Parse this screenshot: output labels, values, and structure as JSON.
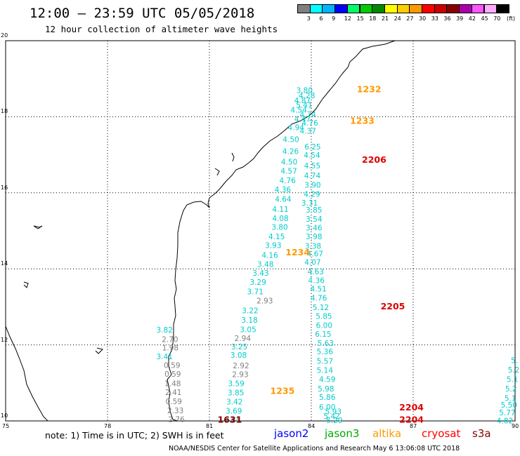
{
  "header": {
    "title": "12:00 – 23:59 UTC 05/05/2018",
    "subtitle": "12 hour collection of altimeter wave heights"
  },
  "legend": {
    "unit": "(ft)",
    "bins": [
      {
        "label": "3",
        "color": "#7f7f7f"
      },
      {
        "label": "6",
        "color": "#00ffff"
      },
      {
        "label": "9",
        "color": "#00b4ff"
      },
      {
        "label": "12",
        "color": "#0000ff"
      },
      {
        "label": "15",
        "color": "#00ff66"
      },
      {
        "label": "18",
        "color": "#00cc00"
      },
      {
        "label": "21",
        "color": "#008800"
      },
      {
        "label": "24",
        "color": "#ffff00"
      },
      {
        "label": "27",
        "color": "#ffcc00"
      },
      {
        "label": "30",
        "color": "#ff9900"
      },
      {
        "label": "33",
        "color": "#ff0000"
      },
      {
        "label": "36",
        "color": "#cc0000"
      },
      {
        "label": "39",
        "color": "#880000"
      },
      {
        "label": "42",
        "color": "#aa00aa"
      },
      {
        "label": "45",
        "color": "#ff55ff"
      },
      {
        "label": "70",
        "color": "#ffaaff"
      },
      {
        "label": "",
        "color": "#000000"
      }
    ]
  },
  "axes": {
    "lon_ticks": [
      "75",
      "78",
      "81",
      "84",
      "87",
      "90"
    ],
    "lat_ticks": [
      "20",
      "18",
      "16",
      "14",
      "12",
      "10"
    ]
  },
  "tracks": [
    {
      "color": "#00cccc",
      "points": [
        {
          "lon": 83.8,
          "lat": 18.7,
          "v": "3.80"
        },
        {
          "lon": 83.87,
          "lat": 18.56,
          "v": "4.28"
        },
        {
          "lon": 83.74,
          "lat": 18.43,
          "v": "4.87"
        },
        {
          "lon": 83.79,
          "lat": 18.31,
          "v": "5.41"
        },
        {
          "lon": 83.63,
          "lat": 18.18,
          "v": "4.54"
        },
        {
          "lon": 83.9,
          "lat": 18.06,
          "v": "4.74"
        },
        {
          "lon": 83.74,
          "lat": 17.94,
          "v": "4.47"
        },
        {
          "lon": 83.96,
          "lat": 17.84,
          "v": "4.76"
        },
        {
          "lon": 83.55,
          "lat": 17.72,
          "v": "4.94"
        },
        {
          "lon": 83.9,
          "lat": 17.63,
          "v": "4.37"
        },
        {
          "lon": 83.4,
          "lat": 17.41,
          "v": "4.50"
        },
        {
          "lon": 84.04,
          "lat": 17.21,
          "v": "6.25"
        },
        {
          "lon": 83.39,
          "lat": 17.09,
          "v": "4.26"
        },
        {
          "lon": 84.02,
          "lat": 16.99,
          "v": "4.54"
        },
        {
          "lon": 83.35,
          "lat": 16.82,
          "v": "4.50"
        },
        {
          "lon": 84.03,
          "lat": 16.72,
          "v": "4.55"
        },
        {
          "lon": 83.34,
          "lat": 16.58,
          "v": "4.57"
        },
        {
          "lon": 84.03,
          "lat": 16.46,
          "v": "4.74"
        },
        {
          "lon": 83.3,
          "lat": 16.33,
          "v": "4.76"
        },
        {
          "lon": 84.04,
          "lat": 16.21,
          "v": "3.90"
        },
        {
          "lon": 83.16,
          "lat": 16.09,
          "v": "4.36"
        },
        {
          "lon": 84.02,
          "lat": 15.97,
          "v": "4.29"
        },
        {
          "lon": 83.17,
          "lat": 15.84,
          "v": "4.64"
        },
        {
          "lon": 83.95,
          "lat": 15.74,
          "v": "3.31"
        },
        {
          "lon": 83.09,
          "lat": 15.57,
          "v": "4.11"
        },
        {
          "lon": 84.08,
          "lat": 15.55,
          "v": "3.85"
        },
        {
          "lon": 83.09,
          "lat": 15.33,
          "v": "4.08"
        },
        {
          "lon": 84.08,
          "lat": 15.31,
          "v": "3.54"
        },
        {
          "lon": 83.07,
          "lat": 15.1,
          "v": "3.80"
        },
        {
          "lon": 84.08,
          "lat": 15.08,
          "v": "3.46"
        },
        {
          "lon": 82.98,
          "lat": 14.85,
          "v": "4.15"
        },
        {
          "lon": 84.08,
          "lat": 14.85,
          "v": "3.98"
        },
        {
          "lon": 82.88,
          "lat": 14.62,
          "v": "3.93"
        },
        {
          "lon": 84.05,
          "lat": 14.6,
          "v": "3.38"
        },
        {
          "lon": 84.11,
          "lat": 14.4,
          "v": "4.67"
        },
        {
          "lon": 82.78,
          "lat": 14.36,
          "v": "4.16"
        },
        {
          "lon": 84.04,
          "lat": 14.18,
          "v": "4.07"
        },
        {
          "lon": 82.65,
          "lat": 14.12,
          "v": "3.48"
        },
        {
          "lon": 84.13,
          "lat": 13.93,
          "v": "4.63"
        },
        {
          "lon": 82.51,
          "lat": 13.89,
          "v": "3.43"
        },
        {
          "lon": 84.15,
          "lat": 13.7,
          "v": "4.36"
        },
        {
          "lon": 82.43,
          "lat": 13.65,
          "v": "3.29"
        },
        {
          "lon": 84.21,
          "lat": 13.48,
          "v": "4.51"
        },
        {
          "lon": 82.35,
          "lat": 13.4,
          "v": "3.71"
        },
        {
          "lon": 84.22,
          "lat": 13.24,
          "v": "4.76"
        },
        {
          "lon": 84.28,
          "lat": 12.99,
          "v": "5.12"
        },
        {
          "lon": 82.2,
          "lat": 12.91,
          "v": "3.22"
        },
        {
          "lon": 84.37,
          "lat": 12.76,
          "v": "5.85"
        },
        {
          "lon": 82.18,
          "lat": 12.66,
          "v": "3.18"
        },
        {
          "lon": 84.38,
          "lat": 12.52,
          "v": "6.00"
        },
        {
          "lon": 82.14,
          "lat": 12.41,
          "v": "3.05"
        },
        {
          "lon": 84.35,
          "lat": 12.29,
          "v": "6.15"
        },
        {
          "lon": 84.42,
          "lat": 12.05,
          "v": "5.63"
        },
        {
          "lon": 81.88,
          "lat": 11.96,
          "v": "3.25"
        },
        {
          "lon": 84.4,
          "lat": 11.83,
          "v": "5.36"
        },
        {
          "lon": 81.86,
          "lat": 11.73,
          "v": "3.08"
        },
        {
          "lon": 84.4,
          "lat": 11.58,
          "v": "5.57"
        },
        {
          "lon": 84.4,
          "lat": 11.34,
          "v": "5.14"
        },
        {
          "lon": 84.47,
          "lat": 11.1,
          "v": "4.59"
        },
        {
          "lon": 81.79,
          "lat": 10.99,
          "v": "3.59"
        },
        {
          "lon": 84.43,
          "lat": 10.85,
          "v": "5.98"
        },
        {
          "lon": 81.78,
          "lat": 10.75,
          "v": "3.85"
        },
        {
          "lon": 84.47,
          "lat": 10.63,
          "v": "5.86"
        },
        {
          "lon": 81.74,
          "lat": 10.51,
          "v": "3.42"
        },
        {
          "lon": 84.47,
          "lat": 10.37,
          "v": "6.00"
        },
        {
          "lon": 81.72,
          "lat": 10.27,
          "v": "3.69"
        },
        {
          "lon": 84.6,
          "lat": 10.13,
          "v": "5.42"
        },
        {
          "lon": 81.68,
          "lat": 10.03,
          "v": "3.55"
        },
        {
          "lon": 84.65,
          "lat": 10.25,
          "v": "5.93"
        },
        {
          "lon": 84.68,
          "lat": 10.02,
          "v": "5.29"
        }
      ]
    },
    {
      "color": "#7f7f7f",
      "points": [
        {
          "lon": 82.63,
          "lat": 13.16,
          "v": "2.93"
        },
        {
          "lon": 81.98,
          "lat": 12.18,
          "v": "2.94"
        },
        {
          "lon": 81.93,
          "lat": 11.46,
          "v": "2.92"
        },
        {
          "lon": 81.91,
          "lat": 11.23,
          "v": "2.93"
        }
      ]
    },
    {
      "color": "#00cccc",
      "points": [
        {
          "lon": 79.68,
          "lat": 12.4,
          "v": "3.82"
        },
        {
          "lon": 79.68,
          "lat": 11.7,
          "v": "3.41"
        },
        {
          "lon": 89.98,
          "lat": 11.6,
          "v": "5."
        },
        {
          "lon": 89.96,
          "lat": 11.35,
          "v": "5.2"
        },
        {
          "lon": 89.92,
          "lat": 11.1,
          "v": "5.1"
        },
        {
          "lon": 89.88,
          "lat": 10.85,
          "v": "5.2"
        },
        {
          "lon": 89.86,
          "lat": 10.6,
          "v": "5.1"
        },
        {
          "lon": 89.82,
          "lat": 10.42,
          "v": "5.50"
        },
        {
          "lon": 89.77,
          "lat": 10.22,
          "v": "5.77"
        },
        {
          "lon": 89.7,
          "lat": 10.01,
          "v": "4.82"
        }
      ]
    },
    {
      "color": "#7f7f7f",
      "points": [
        {
          "lon": 79.84,
          "lat": 12.15,
          "v": "2.70"
        },
        {
          "lon": 79.85,
          "lat": 11.93,
          "v": "1.98"
        },
        {
          "lon": 79.9,
          "lat": 11.47,
          "v": "0.59"
        },
        {
          "lon": 79.92,
          "lat": 11.24,
          "v": "0.59"
        },
        {
          "lon": 79.92,
          "lat": 10.99,
          "v": "1.48"
        },
        {
          "lon": 79.94,
          "lat": 10.76,
          "v": "2.41"
        },
        {
          "lon": 79.95,
          "lat": 10.52,
          "v": "0.59"
        },
        {
          "lon": 80.0,
          "lat": 10.28,
          "v": "2.33"
        },
        {
          "lon": 80.03,
          "lat": 10.05,
          "v": "2.76"
        }
      ]
    }
  ],
  "passes": [
    {
      "label": "1232",
      "color": "#ff9900",
      "lon": 85.7,
      "lat": 18.74
    },
    {
      "label": "1233",
      "color": "#ff9900",
      "lon": 85.5,
      "lat": 17.91
    },
    {
      "label": "2206",
      "color": "#dd0000",
      "lon": 85.85,
      "lat": 16.88
    },
    {
      "label": "1234",
      "color": "#ff9900",
      "lon": 83.6,
      "lat": 14.45
    },
    {
      "label": "2205",
      "color": "#dd0000",
      "lon": 86.4,
      "lat": 13.03
    },
    {
      "label": "1235",
      "color": "#ff9900",
      "lon": 83.15,
      "lat": 10.8
    },
    {
      "label": "2204",
      "color": "#dd0000",
      "lon": 86.95,
      "lat": 10.37
    },
    {
      "label": "2204",
      "color": "#dd0000",
      "lon": 86.95,
      "lat": 10.05
    },
    {
      "label": "1631",
      "color": "#880000",
      "lon": 81.6,
      "lat": 10.05
    }
  ],
  "note": "note: 1) Time is in UTC; 2) SWH is in feet",
  "satellites": [
    {
      "name": "jason2",
      "color": "#0000ff"
    },
    {
      "name": "jason3",
      "color": "#00aa00"
    },
    {
      "name": "altika",
      "color": "#ff9900"
    },
    {
      "name": "cryosat",
      "color": "#ff0000"
    },
    {
      "name": "s3a",
      "color": "#880000"
    }
  ],
  "footer": "NOAA/NESDIS Center for Satellite Applications and Research    May  6 13:06:08 UTC 2018"
}
